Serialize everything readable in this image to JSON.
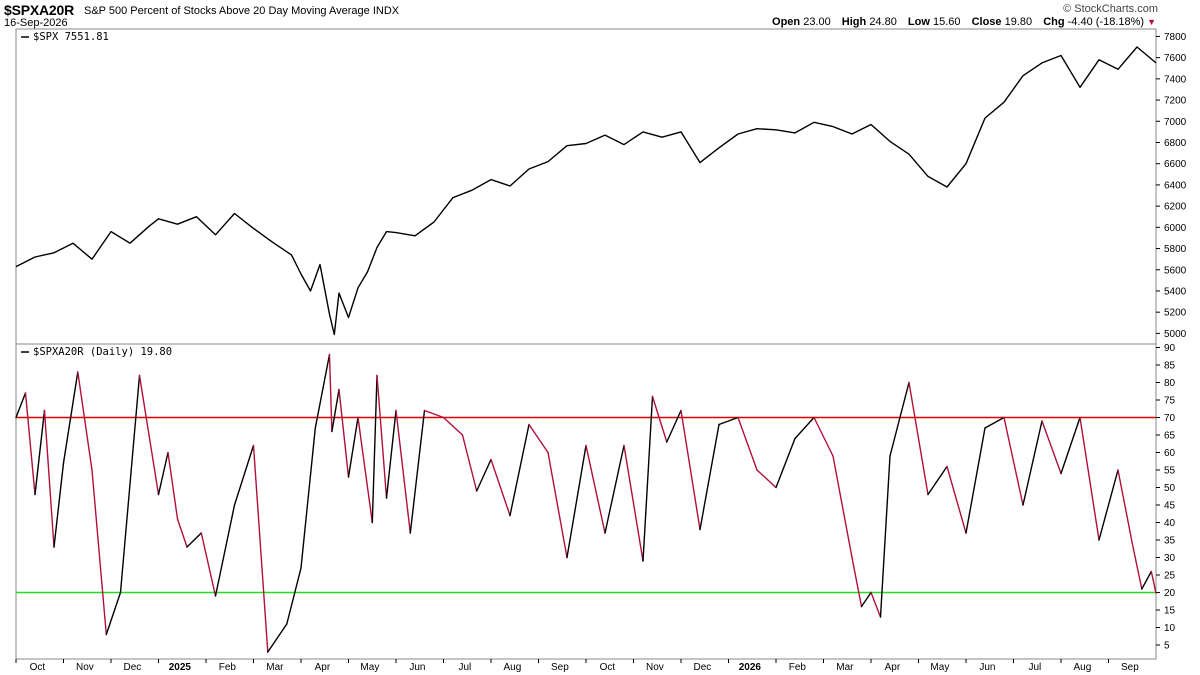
{
  "header": {
    "symbol": "$SPXA20R",
    "description": "S&P 500 Percent of Stocks Above 20 Day Moving Average INDX",
    "date": "16-Sep-2026",
    "brand": "© StockCharts.com",
    "open_label": "Open",
    "open": "23.00",
    "high_label": "High",
    "high": "24.80",
    "low_label": "Low",
    "low": "15.60",
    "close_label": "Close",
    "close": "19.80",
    "chg_label": "Chg",
    "chg": "-4.40 (-18.18%)",
    "chg_color": "#b0103a"
  },
  "chart_data": [
    {
      "type": "line",
      "pane": "top",
      "legend": "$SPX 7551.81",
      "color": "#000000",
      "ylim": [
        4900,
        7870
      ],
      "yticks": [
        5000,
        5200,
        5400,
        5600,
        5800,
        6000,
        6200,
        6400,
        6600,
        6800,
        7000,
        7200,
        7400,
        7600,
        7800
      ],
      "x": [
        0,
        0.4,
        0.8,
        1.2,
        1.6,
        2.0,
        2.4,
        2.8,
        3.0,
        3.4,
        3.8,
        4.2,
        4.6,
        5.0,
        5.4,
        5.8,
        6.0,
        6.2,
        6.4,
        6.6,
        6.7,
        6.8,
        7.0,
        7.2,
        7.4,
        7.6,
        7.8,
        8.0,
        8.4,
        8.8,
        9.2,
        9.6,
        10.0,
        10.4,
        10.8,
        11.2,
        11.6,
        12.0,
        12.4,
        12.8,
        13.2,
        13.6,
        14.0,
        14.4,
        14.8,
        15.2,
        15.6,
        16.0,
        16.4,
        16.8,
        17.2,
        17.6,
        18.0,
        18.4,
        18.8,
        19.2,
        19.6,
        20.0,
        20.4,
        20.8,
        21.2,
        21.6,
        22.0,
        22.4,
        22.8,
        23.2,
        23.6,
        24.0
      ],
      "values": [
        5630,
        5720,
        5760,
        5850,
        5700,
        5960,
        5850,
        6010,
        6080,
        6030,
        6100,
        5930,
        6130,
        5990,
        5860,
        5740,
        5560,
        5400,
        5650,
        5180,
        4990,
        5380,
        5150,
        5430,
        5580,
        5810,
        5960,
        5950,
        5920,
        6050,
        6280,
        6350,
        6450,
        6390,
        6550,
        6620,
        6770,
        6790,
        6870,
        6780,
        6900,
        6850,
        6900,
        6610,
        6750,
        6880,
        6930,
        6920,
        6890,
        6990,
        6950,
        6880,
        6970,
        6810,
        6690,
        6480,
        6380,
        6600,
        7030,
        7180,
        7430,
        7550,
        7620,
        7320,
        7580,
        7490,
        7700,
        7550
      ]
    },
    {
      "type": "line",
      "pane": "bottom",
      "legend": "$SPXA20R (Daily) 19.80",
      "up_color": "#000000",
      "down_color": "#b0103a",
      "ylim": [
        1,
        91
      ],
      "yticks": [
        5,
        10,
        15,
        20,
        25,
        30,
        35,
        40,
        45,
        50,
        55,
        60,
        65,
        70,
        75,
        80,
        85,
        90
      ],
      "reference_lines": [
        {
          "value": 70,
          "color": "#e00000"
        },
        {
          "value": 20,
          "color": "#22dd22"
        }
      ],
      "x": [
        0,
        0.2,
        0.4,
        0.6,
        0.8,
        1.0,
        1.3,
        1.6,
        1.9,
        2.2,
        2.6,
        3.0,
        3.2,
        3.4,
        3.6,
        3.9,
        4.2,
        4.6,
        5.0,
        5.3,
        5.7,
        6.0,
        6.3,
        6.6,
        6.65,
        6.8,
        7.0,
        7.2,
        7.5,
        7.6,
        7.8,
        8.0,
        8.3,
        8.6,
        9.0,
        9.4,
        9.7,
        10.0,
        10.4,
        10.8,
        11.2,
        11.6,
        12.0,
        12.4,
        12.8,
        13.2,
        13.4,
        13.7,
        14.0,
        14.4,
        14.8,
        15.2,
        15.6,
        16.0,
        16.4,
        16.8,
        17.2,
        17.6,
        17.8,
        18.0,
        18.2,
        18.4,
        18.8,
        19.2,
        19.6,
        20.0,
        20.4,
        20.8,
        21.2,
        21.6,
        22.0,
        22.4,
        22.8,
        23.2,
        23.5,
        23.7,
        23.9,
        24.0
      ],
      "values": [
        70,
        77,
        48,
        72,
        33,
        57,
        83,
        55,
        8,
        20,
        82,
        48,
        60,
        41,
        33,
        37,
        19,
        45,
        62,
        3,
        11,
        27,
        67,
        88,
        66,
        78,
        53,
        70,
        40,
        82,
        47,
        72,
        37,
        72,
        70,
        65,
        49,
        58,
        42,
        68,
        60,
        30,
        62,
        37,
        62,
        29,
        76,
        63,
        72,
        38,
        68,
        70,
        55,
        50,
        64,
        70,
        59,
        30,
        16,
        20,
        13,
        59,
        80,
        48,
        56,
        37,
        67,
        70,
        45,
        69,
        54,
        70,
        35,
        55,
        34,
        21,
        26,
        19.8
      ]
    }
  ],
  "x_axis": {
    "labels": [
      "Oct",
      "Nov",
      "Dec",
      "2025",
      "Feb",
      "Mar",
      "Apr",
      "May",
      "Jun",
      "Jul",
      "Aug",
      "Sep",
      "Oct",
      "Nov",
      "Dec",
      "2026",
      "Feb",
      "Mar",
      "Apr",
      "May",
      "Jun",
      "Jul",
      "Aug",
      "Sep"
    ],
    "bold": [
      false,
      false,
      false,
      true,
      false,
      false,
      false,
      false,
      false,
      false,
      false,
      false,
      false,
      false,
      false,
      true,
      false,
      false,
      false,
      false,
      false,
      false,
      false,
      false
    ]
  }
}
